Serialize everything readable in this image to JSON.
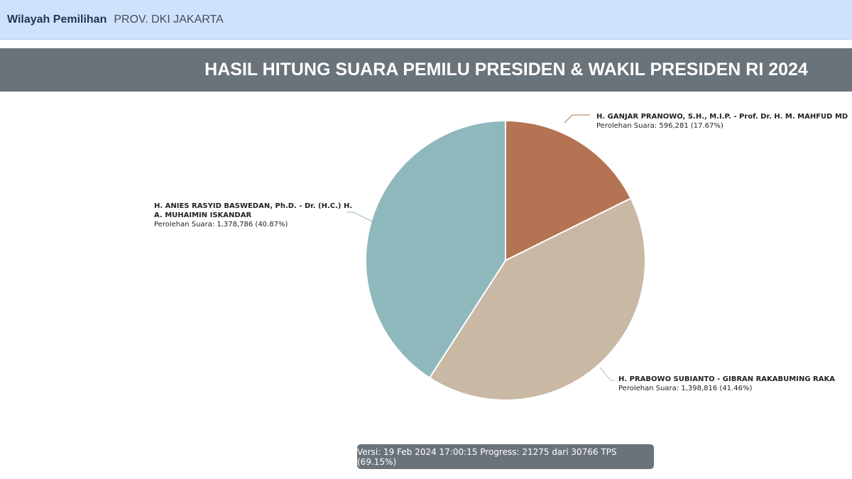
{
  "header": {
    "label": "Wilayah Pemilihan",
    "value": "PROV. DKI JAKARTA"
  },
  "title": "HASIL HITUNG SUARA PEMILU PRESIDEN & WAKIL PRESIDEN RI 2024",
  "chart_data": {
    "type": "pie",
    "slices": [
      {
        "name_lines": [
          "H. GANJAR PRANOWO, S.H., M.I.P. - Prof. Dr. H. M. MAHFUD MD"
        ],
        "vote_text": "Perolehan Suara: 596,281 (17.67%)",
        "value": 596281,
        "percent": 17.67,
        "color": "#b47453"
      },
      {
        "name_lines": [
          "H. PRABOWO SUBIANTO - GIBRAN RAKABUMING RAKA"
        ],
        "vote_text": "Perolehan Suara: 1,398,816 (41.46%)",
        "value": 1398816,
        "percent": 41.46,
        "color": "#c8b8a4"
      },
      {
        "name_lines": [
          "H. ANIES RASYID BASWEDAN, Ph.D. - Dr. (H.C.) H.",
          "A. MUHAIMIN ISKANDAR"
        ],
        "vote_text": "Perolehan Suara: 1,378,786 (40.87%)",
        "value": 1378786,
        "percent": 40.87,
        "color": "#8fb8bd"
      }
    ]
  },
  "footer": {
    "text": "Versi: 19 Feb 2024 17:00:15 Progress: 21275 dari 30766 TPS (69.15%)"
  }
}
